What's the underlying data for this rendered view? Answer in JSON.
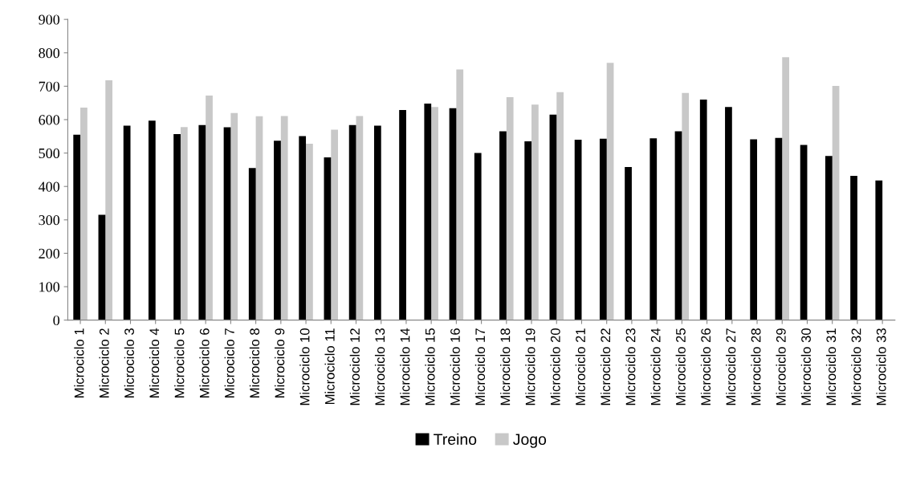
{
  "chart_data": {
    "type": "bar",
    "categories": [
      "Microciclo 1",
      "Microciclo 2",
      "Microciclo 3",
      "Microciclo 4",
      "Microciclo 5",
      "Microciclo 6",
      "Microciclo 7",
      "Microciclo 8",
      "Microciclo 9",
      "Microciclo 10",
      "Microciclo 11",
      "Microciclo 12",
      "Microciclo 13",
      "Microciclo 14",
      "Microciclo 15",
      "Microciclo 16",
      "Microciclo 17",
      "Microciclo 18",
      "Microciclo 19",
      "Microciclo 20",
      "Microciclo 21",
      "Microciclo 22",
      "Microciclo 23",
      "Microciclo 24",
      "Microciclo 25",
      "Microciclo 26",
      "Microciclo 27",
      "Microciclo 28",
      "Microciclo 29",
      "Microciclo 30",
      "Microciclo 31",
      "Microciclo 32",
      "Microciclo 33"
    ],
    "series": [
      {
        "name": "Treino",
        "color": "#000000",
        "values": [
          555,
          315,
          582,
          597,
          557,
          584,
          577,
          455,
          537,
          551,
          487,
          584,
          582,
          629,
          648,
          634,
          500,
          565,
          535,
          615,
          540,
          543,
          458,
          544,
          565,
          660,
          638,
          541,
          545,
          524,
          491,
          432,
          418
        ]
      },
      {
        "name": "Jogo",
        "color": "#c8c8c8",
        "values": [
          636,
          718,
          null,
          null,
          578,
          672,
          620,
          610,
          611,
          528,
          570,
          611,
          null,
          null,
          638,
          750,
          null,
          667,
          645,
          682,
          null,
          770,
          null,
          null,
          680,
          null,
          null,
          null,
          787,
          null,
          701,
          null,
          null
        ]
      }
    ],
    "ylim": [
      0,
      900
    ],
    "yticks": [
      0,
      100,
      200,
      300,
      400,
      500,
      600,
      700,
      800,
      900
    ],
    "grid": false,
    "legend": "bottom"
  }
}
